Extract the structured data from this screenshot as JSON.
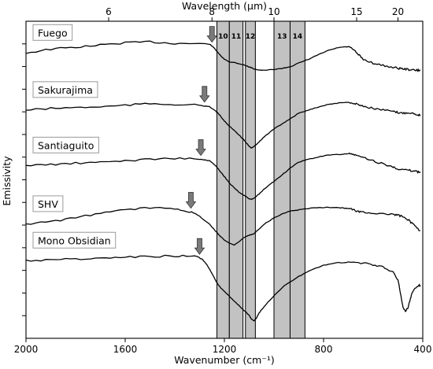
{
  "chart_data": {
    "type": "line",
    "title": "",
    "xlabel": "Wavenumber (cm⁻¹)",
    "x2label": "Wavelength (μm)",
    "ylabel": "Emissivity",
    "xlim": [
      2000,
      400
    ],
    "x_ticks": [
      2000,
      1600,
      1200,
      800,
      400
    ],
    "x2_ticks": [
      {
        "label": "6",
        "wavelength_um": 6
      },
      {
        "label": "8",
        "wavelength_um": 8
      },
      {
        "label": "10",
        "wavelength_um": 10
      },
      {
        "label": "15",
        "wavelength_um": 15
      },
      {
        "label": "20",
        "wavelength_um": 20
      }
    ],
    "bands": [
      {
        "label": "10",
        "wn_range": [
          1230,
          1180
        ]
      },
      {
        "label": "11",
        "wn_range": [
          1180,
          1125
        ]
      },
      {
        "label": "12",
        "wn_range": [
          1115,
          1075
        ]
      },
      {
        "label": "13",
        "wn_range": [
          1000,
          935
        ]
      },
      {
        "label": "14",
        "wn_range": [
          935,
          875
        ]
      }
    ],
    "series": [
      {
        "name": "Fuego",
        "arrow_x": 1250,
        "x": [
          2000,
          1900,
          1800,
          1700,
          1600,
          1500,
          1400,
          1300,
          1260,
          1240,
          1220,
          1200,
          1180,
          1160,
          1140,
          1120,
          1100,
          1080,
          1060,
          1040,
          1000,
          960,
          930,
          900,
          860,
          820,
          780,
          740,
          700,
          680,
          660,
          640,
          600,
          560,
          520,
          500,
          480,
          460,
          440,
          420,
          410
        ],
        "y": [
          0.9,
          0.912,
          0.918,
          0.925,
          0.932,
          0.935,
          0.93,
          0.93,
          0.928,
          0.915,
          0.895,
          0.88,
          0.872,
          0.87,
          0.866,
          0.862,
          0.856,
          0.85,
          0.846,
          0.845,
          0.848,
          0.852,
          0.858,
          0.868,
          0.88,
          0.895,
          0.908,
          0.917,
          0.92,
          0.91,
          0.895,
          0.88,
          0.868,
          0.86,
          0.855,
          0.852,
          0.85,
          0.848,
          0.846,
          0.845,
          0.845
        ]
      },
      {
        "name": "Sakurajima",
        "arrow_x": 1280,
        "x": [
          2000,
          1900,
          1800,
          1700,
          1600,
          1500,
          1400,
          1300,
          1260,
          1240,
          1220,
          1200,
          1180,
          1160,
          1140,
          1120,
          1100,
          1090,
          1080,
          1060,
          1040,
          1000,
          960,
          930,
          900,
          860,
          820,
          780,
          740,
          700,
          680,
          660,
          640,
          600,
          560,
          520,
          500,
          480,
          460,
          440,
          420,
          410
        ],
        "y": [
          0.72,
          0.725,
          0.728,
          0.73,
          0.735,
          0.74,
          0.738,
          0.735,
          0.73,
          0.72,
          0.705,
          0.685,
          0.67,
          0.655,
          0.64,
          0.625,
          0.605,
          0.6,
          0.605,
          0.62,
          0.635,
          0.66,
          0.68,
          0.695,
          0.71,
          0.72,
          0.73,
          0.738,
          0.742,
          0.745,
          0.74,
          0.738,
          0.732,
          0.725,
          0.72,
          0.715,
          0.712,
          0.71,
          0.712,
          0.71,
          0.705,
          0.705
        ]
      },
      {
        "name": "Santiaguito",
        "arrow_x": 1295,
        "x": [
          2000,
          1900,
          1800,
          1700,
          1600,
          1500,
          1400,
          1300,
          1260,
          1240,
          1220,
          1200,
          1180,
          1160,
          1140,
          1120,
          1100,
          1090,
          1080,
          1060,
          1040,
          1000,
          960,
          930,
          900,
          860,
          820,
          780,
          740,
          700,
          680,
          660,
          640,
          600,
          560,
          520,
          500,
          480,
          460,
          440,
          420,
          410
        ],
        "y": [
          0.545,
          0.548,
          0.552,
          0.555,
          0.56,
          0.565,
          0.568,
          0.565,
          0.56,
          0.548,
          0.53,
          0.51,
          0.49,
          0.475,
          0.46,
          0.45,
          0.44,
          0.438,
          0.442,
          0.455,
          0.47,
          0.495,
          0.52,
          0.54,
          0.555,
          0.565,
          0.572,
          0.578,
          0.58,
          0.582,
          0.58,
          0.575,
          0.57,
          0.56,
          0.55,
          0.54,
          0.535,
          0.532,
          0.53,
          0.528,
          0.525,
          0.525
        ]
      },
      {
        "name": "SHV",
        "arrow_x": 1335,
        "x": [
          2000,
          1900,
          1800,
          1700,
          1600,
          1500,
          1400,
          1340,
          1300,
          1260,
          1240,
          1220,
          1200,
          1180,
          1160,
          1140,
          1120,
          1100,
          1080,
          1060,
          1040,
          1000,
          960,
          930,
          900,
          860,
          820,
          780,
          740,
          700,
          680,
          660,
          640,
          600,
          560,
          520,
          500,
          480,
          460,
          440,
          420,
          410
        ],
        "y": [
          0.36,
          0.368,
          0.38,
          0.395,
          0.405,
          0.412,
          0.41,
          0.4,
          0.385,
          0.36,
          0.342,
          0.325,
          0.31,
          0.3,
          0.295,
          0.305,
          0.318,
          0.325,
          0.33,
          0.345,
          0.36,
          0.38,
          0.395,
          0.402,
          0.405,
          0.41,
          0.412,
          0.413,
          0.412,
          0.41,
          0.405,
          0.4,
          0.398,
          0.395,
          0.393,
          0.39,
          0.388,
          0.385,
          0.375,
          0.36,
          0.345,
          0.34
        ]
      },
      {
        "name": "Mono Obsidian",
        "arrow_x": 1300,
        "x": [
          2000,
          1900,
          1800,
          1700,
          1600,
          1500,
          1400,
          1320,
          1290,
          1270,
          1250,
          1230,
          1210,
          1190,
          1170,
          1150,
          1130,
          1110,
          1100,
          1090,
          1080,
          1070,
          1060,
          1040,
          1000,
          960,
          900,
          850,
          800,
          750,
          700,
          650,
          600,
          560,
          520,
          500,
          490,
          480,
          470,
          460,
          450,
          440,
          420,
          410
        ],
        "y": [
          0.245,
          0.248,
          0.25,
          0.252,
          0.255,
          0.258,
          0.26,
          0.258,
          0.25,
          0.232,
          0.205,
          0.175,
          0.155,
          0.14,
          0.125,
          0.11,
          0.095,
          0.08,
          0.072,
          0.06,
          0.055,
          0.065,
          0.08,
          0.1,
          0.135,
          0.165,
          0.195,
          0.215,
          0.23,
          0.238,
          0.24,
          0.238,
          0.232,
          0.225,
          0.21,
          0.185,
          0.14,
          0.1,
          0.085,
          0.095,
          0.125,
          0.15,
          0.165,
          0.168
        ]
      }
    ]
  }
}
